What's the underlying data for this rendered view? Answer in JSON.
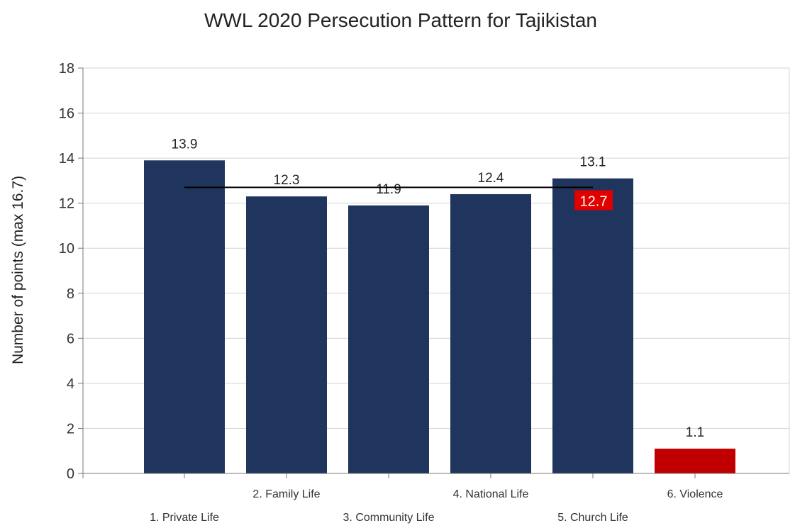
{
  "chart_data": {
    "type": "bar",
    "title": "WWL 2020 Persecution Pattern for Tajikistan",
    "xlabel": "",
    "ylabel": "Number of points (max 16.7)",
    "ylim": [
      0,
      18
    ],
    "yticks": [
      0,
      2,
      4,
      6,
      8,
      10,
      12,
      14,
      16,
      18
    ],
    "grid": true,
    "legend": "none",
    "categories": [
      "1. Private Life",
      "2. Family Life",
      "3. Community Life",
      "4. National Life",
      "5. Church Life",
      "6. Violence"
    ],
    "values": [
      13.9,
      12.3,
      11.9,
      12.4,
      13.1,
      1.1
    ],
    "value_labels": [
      "13.9",
      "12.3",
      "11.9",
      "12.4",
      "13.1",
      "1.1"
    ],
    "bar_colors": [
      "#1f355e",
      "#1f355e",
      "#1f355e",
      "#1f355e",
      "#1f355e",
      "#c00000"
    ],
    "average": {
      "value": 12.7,
      "label": "12.7",
      "span": [
        0,
        4
      ],
      "line_color": "#000000",
      "label_background": "#e00000"
    }
  }
}
